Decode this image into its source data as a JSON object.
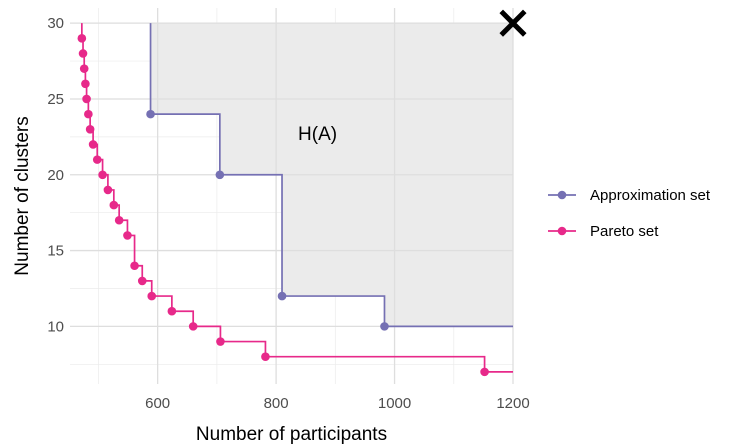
{
  "chart_data": {
    "type": "line",
    "step": "hv",
    "xlabel": "Number of participants",
    "ylabel": "Number of clusters",
    "xlim": [
      452,
      1200
    ],
    "ylim": [
      6.2,
      31
    ],
    "xticks": [
      600,
      800,
      1000,
      1200
    ],
    "yticks": [
      10,
      15,
      20,
      25,
      30
    ],
    "grid": true,
    "legend_position": "right",
    "hypervolume_label": "H(A)",
    "hypervolume_color": "#ebebeb",
    "reference_point": {
      "x": 1200,
      "y": 30,
      "marker": "cross"
    },
    "series": [
      {
        "name": "Approximation set",
        "color": "#7570b3",
        "x": [
          588,
          705,
          810,
          983
        ],
        "y": [
          24,
          20,
          12,
          10
        ]
      },
      {
        "name": "Pareto set",
        "color": "#e7298a",
        "x": [
          472,
          474,
          476,
          478,
          480,
          483,
          486,
          491,
          498,
          507,
          516,
          526,
          535,
          549,
          561,
          574,
          590,
          624,
          660,
          706,
          782,
          1152
        ],
        "y": [
          29,
          28,
          27,
          26,
          25,
          24,
          23,
          22,
          21,
          20,
          19,
          18,
          17,
          16,
          14,
          13,
          12,
          11,
          10,
          9,
          8,
          7
        ]
      }
    ]
  }
}
